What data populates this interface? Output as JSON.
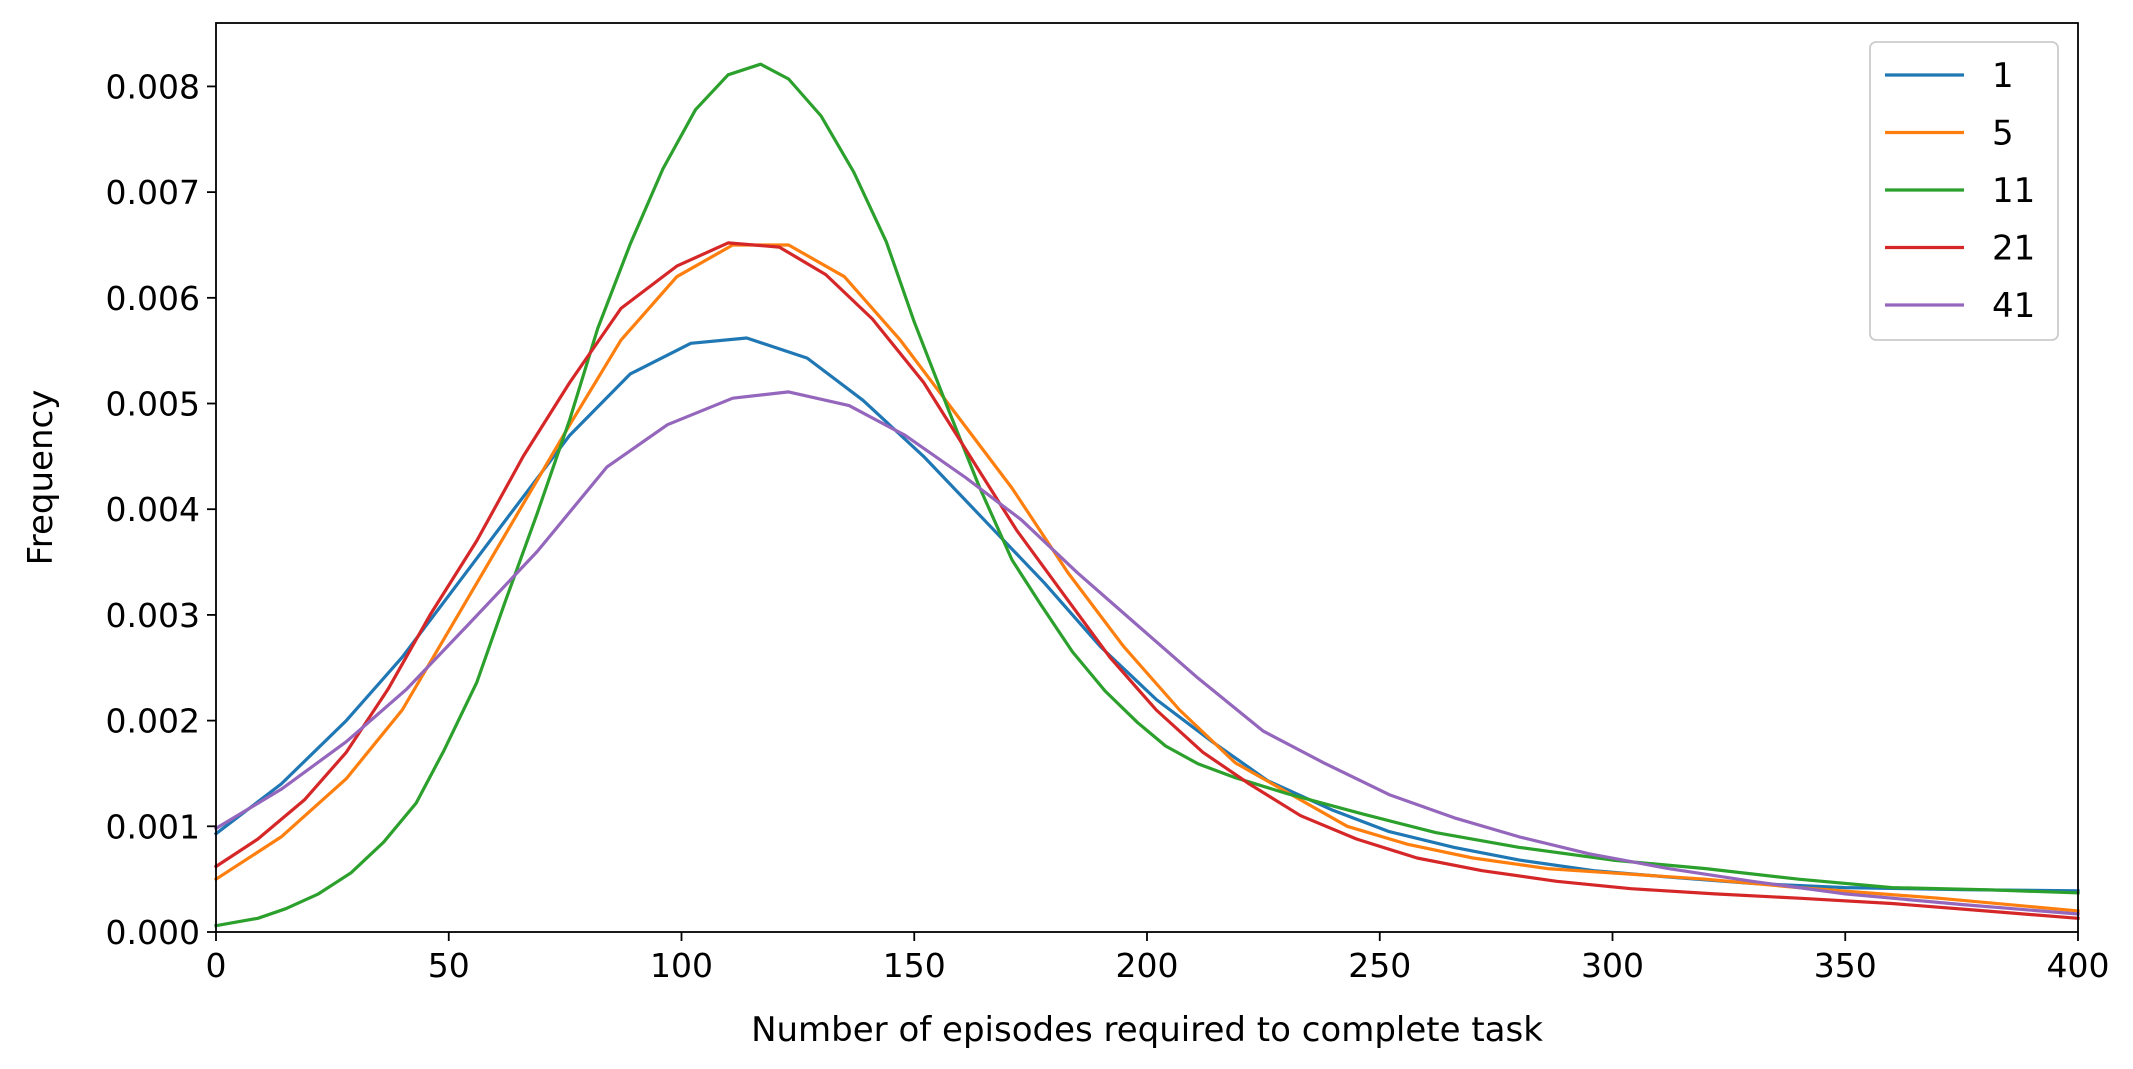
{
  "chart_data": {
    "type": "line",
    "xlabel": "Number of episodes required to complete task",
    "ylabel": "Frequency",
    "xlim": [
      0,
      400
    ],
    "ylim": [
      0,
      0.0086
    ],
    "xticks": [
      0,
      50,
      100,
      150,
      200,
      250,
      300,
      350,
      400
    ],
    "xtick_labels": [
      "0",
      "50",
      "100",
      "150",
      "200",
      "250",
      "300",
      "350",
      "400"
    ],
    "yticks": [
      0,
      0.001,
      0.002,
      0.003,
      0.004,
      0.005,
      0.006,
      0.007,
      0.008
    ],
    "ytick_labels": [
      "0.000",
      "0.001",
      "0.002",
      "0.003",
      "0.004",
      "0.005",
      "0.006",
      "0.007",
      "0.008"
    ],
    "grid": false,
    "legend": {
      "position": "top-right"
    },
    "series": [
      {
        "name": "1",
        "color": "#1f77b4",
        "points": [
          [
            0,
            0.00093
          ],
          [
            14,
            0.0014
          ],
          [
            28,
            0.002
          ],
          [
            40,
            0.0026
          ],
          [
            52,
            0.0033
          ],
          [
            64,
            0.004
          ],
          [
            76,
            0.0047
          ],
          [
            89,
            0.00528
          ],
          [
            102,
            0.00557
          ],
          [
            114,
            0.00562
          ],
          [
            127,
            0.00543
          ],
          [
            139,
            0.00503
          ],
          [
            152,
            0.0045
          ],
          [
            165,
            0.0039
          ],
          [
            178,
            0.0033
          ],
          [
            190,
            0.0027
          ],
          [
            202,
            0.0022
          ],
          [
            214,
            0.0018
          ],
          [
            226,
            0.00143
          ],
          [
            240,
            0.00115
          ],
          [
            252,
            0.00095
          ],
          [
            266,
            0.0008
          ],
          [
            280,
            0.00068
          ],
          [
            296,
            0.00058
          ],
          [
            312,
            0.00052
          ],
          [
            330,
            0.00046
          ],
          [
            350,
            0.00042
          ],
          [
            375,
            0.0004
          ],
          [
            400,
            0.00039
          ]
        ]
      },
      {
        "name": "5",
        "color": "#ff7f0e",
        "points": [
          [
            0,
            0.0005
          ],
          [
            14,
            0.0009
          ],
          [
            28,
            0.00145
          ],
          [
            40,
            0.0021
          ],
          [
            52,
            0.003
          ],
          [
            64,
            0.0039
          ],
          [
            76,
            0.0048
          ],
          [
            87,
            0.0056
          ],
          [
            99,
            0.0062
          ],
          [
            111,
            0.0065
          ],
          [
            123,
            0.0065
          ],
          [
            135,
            0.0062
          ],
          [
            147,
            0.0056
          ],
          [
            159,
            0.0049
          ],
          [
            171,
            0.0042
          ],
          [
            183,
            0.0034
          ],
          [
            195,
            0.0027
          ],
          [
            207,
            0.0021
          ],
          [
            219,
            0.0016
          ],
          [
            231,
            0.0013
          ],
          [
            243,
            0.001
          ],
          [
            256,
            0.00083
          ],
          [
            270,
            0.0007
          ],
          [
            286,
            0.0006
          ],
          [
            303,
            0.00055
          ],
          [
            320,
            0.0005
          ],
          [
            340,
            0.00042
          ],
          [
            370,
            0.00032
          ],
          [
            400,
            0.0002
          ]
        ]
      },
      {
        "name": "11",
        "color": "#2ca02c",
        "points": [
          [
            0,
            6e-05
          ],
          [
            9,
            0.00013
          ],
          [
            15,
            0.00022
          ],
          [
            22,
            0.00036
          ],
          [
            29,
            0.00056
          ],
          [
            36,
            0.00085
          ],
          [
            43,
            0.00122
          ],
          [
            49,
            0.00172
          ],
          [
            56,
            0.00236
          ],
          [
            62,
            0.00311
          ],
          [
            69,
            0.00396
          ],
          [
            76,
            0.00485
          ],
          [
            82,
            0.00571
          ],
          [
            89,
            0.00651
          ],
          [
            96,
            0.00722
          ],
          [
            103,
            0.00778
          ],
          [
            110,
            0.00811
          ],
          [
            117,
            0.00821
          ],
          [
            123,
            0.00807
          ],
          [
            130,
            0.00772
          ],
          [
            137,
            0.00719
          ],
          [
            144,
            0.00653
          ],
          [
            150,
            0.00577
          ],
          [
            157,
            0.00498
          ],
          [
            164,
            0.00421
          ],
          [
            171,
            0.00352
          ],
          [
            177,
            0.00311
          ],
          [
            184,
            0.00265
          ],
          [
            191,
            0.00228
          ],
          [
            198,
            0.00198
          ],
          [
            204,
            0.00176
          ],
          [
            211,
            0.00159
          ],
          [
            219,
            0.00146
          ],
          [
            230,
            0.00131
          ],
          [
            246,
            0.00112
          ],
          [
            262,
            0.00094
          ],
          [
            280,
            0.0008
          ],
          [
            300,
            0.00068
          ],
          [
            320,
            0.0006
          ],
          [
            340,
            0.0005
          ],
          [
            360,
            0.00042
          ],
          [
            380,
            0.0004
          ],
          [
            400,
            0.00037
          ]
        ]
      },
      {
        "name": "21",
        "color": "#d62728",
        "points": [
          [
            0,
            0.00062
          ],
          [
            9,
            0.00088
          ],
          [
            19,
            0.00125
          ],
          [
            28,
            0.0017
          ],
          [
            37,
            0.0023
          ],
          [
            46,
            0.003
          ],
          [
            56,
            0.0037
          ],
          [
            66,
            0.0045
          ],
          [
            76,
            0.0052
          ],
          [
            87,
            0.0059
          ],
          [
            99,
            0.0063
          ],
          [
            110,
            0.00652
          ],
          [
            121,
            0.00648
          ],
          [
            131,
            0.00622
          ],
          [
            141,
            0.0058
          ],
          [
            152,
            0.0052
          ],
          [
            162,
            0.0045
          ],
          [
            172,
            0.0038
          ],
          [
            182,
            0.0032
          ],
          [
            192,
            0.0026
          ],
          [
            202,
            0.0021
          ],
          [
            212,
            0.0017
          ],
          [
            222,
            0.0014
          ],
          [
            233,
            0.0011
          ],
          [
            245,
            0.00088
          ],
          [
            258,
            0.0007
          ],
          [
            272,
            0.00058
          ],
          [
            288,
            0.00048
          ],
          [
            304,
            0.00041
          ],
          [
            322,
            0.00036
          ],
          [
            340,
            0.00032
          ],
          [
            360,
            0.00027
          ],
          [
            380,
            0.0002
          ],
          [
            400,
            0.00013
          ]
        ]
      },
      {
        "name": "41",
        "color": "#9467bd",
        "points": [
          [
            0,
            0.00098
          ],
          [
            14,
            0.00135
          ],
          [
            28,
            0.0018
          ],
          [
            41,
            0.0023
          ],
          [
            54,
            0.0029
          ],
          [
            69,
            0.0036
          ],
          [
            84,
            0.0044
          ],
          [
            97,
            0.0048
          ],
          [
            111,
            0.00505
          ],
          [
            123,
            0.00511
          ],
          [
            136,
            0.00498
          ],
          [
            148,
            0.0047
          ],
          [
            161,
            0.0043
          ],
          [
            173,
            0.0039
          ],
          [
            185,
            0.0034
          ],
          [
            198,
            0.0029
          ],
          [
            211,
            0.0024
          ],
          [
            225,
            0.0019
          ],
          [
            238,
            0.0016
          ],
          [
            252,
            0.0013
          ],
          [
            266,
            0.00108
          ],
          [
            280,
            0.0009
          ],
          [
            295,
            0.00074
          ],
          [
            312,
            0.0006
          ],
          [
            330,
            0.00048
          ],
          [
            350,
            0.00036
          ],
          [
            375,
            0.00026
          ],
          [
            400,
            0.00017
          ]
        ]
      }
    ]
  }
}
